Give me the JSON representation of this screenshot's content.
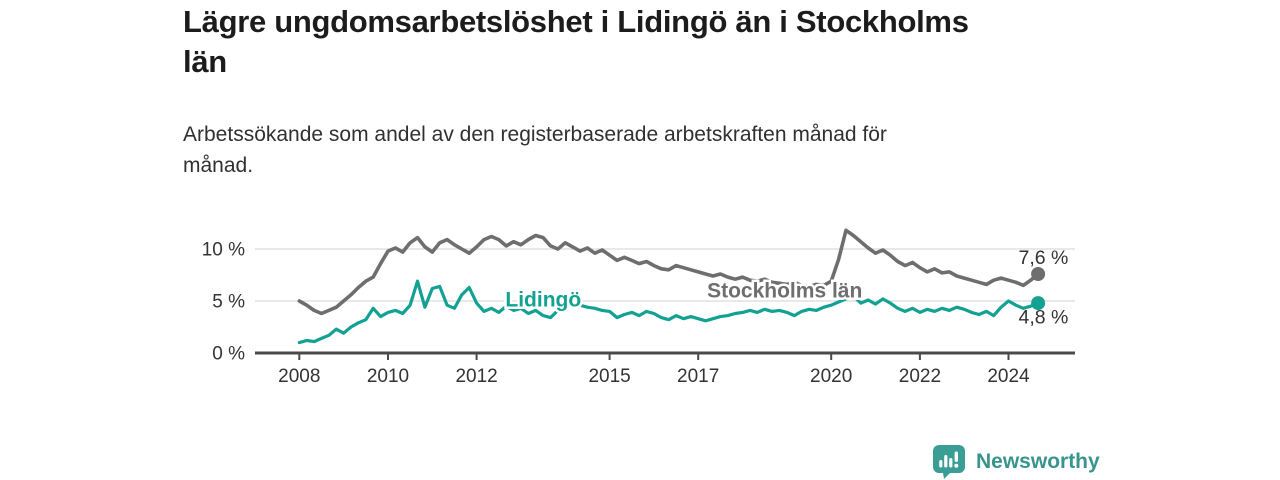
{
  "header": {
    "title_lines": [
      "Lägre ungdomsarbetslöshet i Lidingö än i Stockholms",
      "län"
    ],
    "subtitle_lines": [
      "Arbetssökande som andel av den registerbaserade arbetskraften månad för",
      "månad."
    ]
  },
  "footer": {
    "brand": "Newsworthy",
    "brand_color": "#38948c",
    "icon": "newsworthy-chart-bubble-icon",
    "icon_color": "#3b9e96"
  },
  "chart_data": {
    "type": "line",
    "title": "Lägre ungdomsarbetslöshet i Lidingö än i Stockholms län",
    "subtitle": "Arbetssökande som andel av den registerbaserade arbetskraften månad för månad.",
    "unit": "%",
    "xlim": [
      2007,
      2025.5
    ],
    "ylim": [
      0,
      12.5
    ],
    "grid": "horizontal-only",
    "legend_position": "inline-labels",
    "xticks": [
      2008,
      2010,
      2012,
      2015,
      2017,
      2020,
      2022,
      2024
    ],
    "yticks": [
      {
        "value": 0,
        "label": "0 %"
      },
      {
        "value": 5,
        "label": "5 %"
      },
      {
        "value": 10,
        "label": "10 %"
      }
    ],
    "grid_yticks": [
      5,
      10
    ],
    "colors": {
      "axis": "#4a4a4a",
      "grid": "#d9d9d9",
      "tick_label": "#333333",
      "value_label": "#333333"
    },
    "x_start": 2008,
    "x_step": 0.166667,
    "series": [
      {
        "name": "Stockholms län",
        "color": "#6e6e6e",
        "line_width": 3.6,
        "label": {
          "text": "Stockholms län",
          "x": 2017.2,
          "y": 5.35
        },
        "end_dot": {
          "x": 2024.667,
          "y": 7.6,
          "radius": 7
        },
        "end_label": {
          "text": "7,6 %",
          "x": 2025.35,
          "y": 8.55
        },
        "values": [
          5.0,
          4.6,
          4.1,
          3.8,
          4.1,
          4.4,
          5.0,
          5.6,
          6.3,
          6.9,
          7.3,
          8.6,
          9.8,
          10.1,
          9.7,
          10.6,
          11.1,
          10.2,
          9.7,
          10.6,
          10.9,
          10.4,
          10.0,
          9.6,
          10.2,
          10.9,
          11.2,
          10.9,
          10.3,
          10.7,
          10.4,
          10.9,
          11.3,
          11.1,
          10.3,
          10.0,
          10.6,
          10.2,
          9.8,
          10.1,
          9.6,
          9.9,
          9.4,
          8.9,
          9.2,
          8.9,
          8.6,
          8.8,
          8.4,
          8.1,
          8.0,
          8.4,
          8.2,
          8.0,
          7.8,
          7.6,
          7.4,
          7.6,
          7.3,
          7.1,
          7.3,
          7.0,
          6.9,
          7.1,
          6.8,
          6.7,
          6.6,
          6.8,
          6.5,
          6.4,
          6.6,
          6.5,
          6.9,
          9.0,
          11.8,
          11.3,
          10.7,
          10.1,
          9.6,
          9.9,
          9.4,
          8.8,
          8.4,
          8.7,
          8.2,
          7.8,
          8.1,
          7.7,
          7.8,
          7.4,
          7.2,
          7.0,
          6.8,
          6.6,
          7.0,
          7.2,
          7.0,
          6.8,
          6.5,
          7.0,
          7.6
        ]
      },
      {
        "name": "Lidingö",
        "color": "#12a192",
        "line_width": 3.2,
        "label": {
          "text": "Lidingö",
          "x": 2012.65,
          "y": 4.45
        },
        "end_dot": {
          "x": 2024.667,
          "y": 4.8,
          "radius": 7
        },
        "end_label": {
          "text": "4,8 %",
          "x": 2025.35,
          "y": 2.85
        },
        "values": [
          1.0,
          1.2,
          1.1,
          1.4,
          1.7,
          2.3,
          1.9,
          2.5,
          2.9,
          3.2,
          4.3,
          3.5,
          3.9,
          4.1,
          3.8,
          4.6,
          6.9,
          4.4,
          6.2,
          6.4,
          4.6,
          4.3,
          5.6,
          6.3,
          4.8,
          4.0,
          4.3,
          3.9,
          4.5,
          4.1,
          4.3,
          3.8,
          4.1,
          3.6,
          3.4,
          4.1,
          4.9,
          5.0,
          4.6,
          4.4,
          4.3,
          4.1,
          4.0,
          3.4,
          3.7,
          3.9,
          3.6,
          4.0,
          3.8,
          3.4,
          3.2,
          3.6,
          3.3,
          3.5,
          3.3,
          3.1,
          3.3,
          3.5,
          3.6,
          3.8,
          3.9,
          4.1,
          3.9,
          4.2,
          4.0,
          4.1,
          3.9,
          3.6,
          4.0,
          4.2,
          4.1,
          4.4,
          4.6,
          4.9,
          5.2,
          5.5,
          4.8,
          5.1,
          4.7,
          5.2,
          4.8,
          4.3,
          4.0,
          4.3,
          3.9,
          4.2,
          4.0,
          4.3,
          4.1,
          4.4,
          4.2,
          3.9,
          3.7,
          4.0,
          3.6,
          4.4,
          5.0,
          4.6,
          4.3,
          4.5,
          4.8
        ]
      }
    ]
  }
}
